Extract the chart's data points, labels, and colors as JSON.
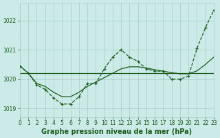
{
  "title": "Graphe pression niveau de la mer (hPa)",
  "background_color": "#cceae8",
  "line_color": "#1a5c1a",
  "grid_color": "#a8ccc8",
  "xlim": [
    0,
    23
  ],
  "ylim": [
    1018.7,
    1022.6
  ],
  "yticks": [
    1019,
    1020,
    1021,
    1022
  ],
  "xticks": [
    0,
    1,
    2,
    3,
    4,
    5,
    6,
    7,
    8,
    9,
    10,
    11,
    12,
    13,
    14,
    15,
    16,
    17,
    18,
    19,
    20,
    21,
    22,
    23
  ],
  "jagged_x": [
    0,
    1,
    2,
    3,
    4,
    5,
    6,
    7,
    8,
    9,
    10,
    11,
    12,
    13,
    14,
    15,
    16,
    17,
    18,
    19,
    20,
    21,
    22,
    23
  ],
  "jagged_y": [
    1020.45,
    1020.2,
    1019.8,
    1019.65,
    1019.35,
    1019.15,
    1019.15,
    1019.4,
    1019.85,
    1019.85,
    1020.35,
    1020.75,
    1021.0,
    1020.75,
    1020.6,
    1020.35,
    1020.27,
    1020.27,
    1020.0,
    1020.0,
    1020.1,
    1021.05,
    1021.75,
    1022.35
  ],
  "smooth_x": [
    0,
    1,
    2,
    3,
    4,
    5,
    6,
    7,
    8,
    9,
    10,
    11,
    12,
    13,
    14,
    15,
    16,
    17,
    18,
    19,
    20,
    21,
    22,
    23
  ],
  "smooth_y": [
    1020.45,
    1020.2,
    1019.85,
    1019.75,
    1019.55,
    1019.4,
    1019.4,
    1019.55,
    1019.75,
    1019.9,
    1020.05,
    1020.2,
    1020.35,
    1020.42,
    1020.42,
    1020.38,
    1020.32,
    1020.27,
    1020.22,
    1020.18,
    1020.18,
    1020.28,
    1020.5,
    1020.75
  ],
  "hline_x": [
    0,
    23
  ],
  "hline_y": [
    1020.2,
    1020.2
  ],
  "marker": "+",
  "marker_size": 3.5,
  "linewidth": 0.9,
  "title_fontsize": 7.0,
  "tick_fontsize": 5.5
}
